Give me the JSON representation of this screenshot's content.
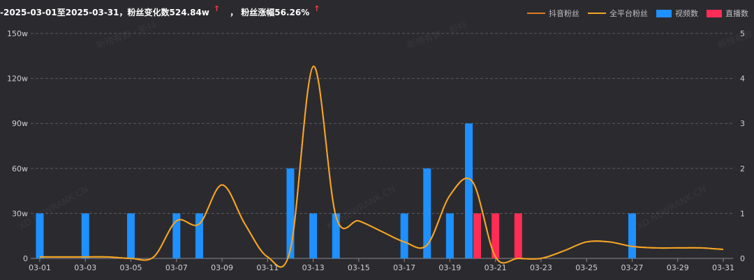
{
  "header": {
    "range_text": "-2025-03-01至2025-03-31，粉丝变化数524.84w",
    "growth_text": "，  粉丝涨幅56.26%",
    "arrow": "↑"
  },
  "legend": [
    {
      "label": "抖音粉丝",
      "color": "#e07b22",
      "kind": "line"
    },
    {
      "label": "全平台粉丝",
      "color": "#f5a623",
      "kind": "line"
    },
    {
      "label": "视频数",
      "color": "#1e90ff",
      "kind": "bar"
    },
    {
      "label": "直播数",
      "color": "#ff2d55",
      "kind": "bar"
    }
  ],
  "watermarks": [
    "新榜有数 · 新抖",
    "XD.NEWRANK.CN"
  ],
  "chart_data": {
    "type": "bar",
    "x": [
      "03-01",
      "03-02",
      "03-03",
      "03-04",
      "03-05",
      "03-06",
      "03-07",
      "03-08",
      "03-09",
      "03-10",
      "03-11",
      "03-12",
      "03-13",
      "03-14",
      "03-15",
      "03-16",
      "03-17",
      "03-18",
      "03-19",
      "03-20",
      "03-21",
      "03-22",
      "03-23",
      "03-24",
      "03-25",
      "03-26",
      "03-27",
      "03-28",
      "03-29",
      "03-30",
      "03-31"
    ],
    "x_tick_labels": [
      "03-01",
      "03-03",
      "03-05",
      "03-07",
      "03-09",
      "03-11",
      "03-13",
      "03-15",
      "03-17",
      "03-19",
      "03-21",
      "03-23",
      "03-25",
      "03-27",
      "03-29",
      "03-31"
    ],
    "y_left": {
      "ticks": [
        "0",
        "30w",
        "60w",
        "90w",
        "120w",
        "150w"
      ],
      "range": [
        0,
        150
      ]
    },
    "y_right": {
      "ticks": [
        "0",
        "1",
        "2",
        "3",
        "4",
        "5"
      ],
      "range": [
        0,
        5
      ]
    },
    "grid": true,
    "series": [
      {
        "name": "视频数",
        "type": "bar",
        "axis": "right",
        "color": "#1e90ff",
        "values": [
          1,
          0,
          1,
          0,
          1,
          0,
          1,
          1,
          0,
          0,
          0,
          2,
          1,
          1,
          0,
          0,
          1,
          2,
          1,
          3,
          0,
          0,
          0,
          0,
          0,
          0,
          1,
          0,
          0,
          0,
          0
        ]
      },
      {
        "name": "直播数",
        "type": "bar",
        "axis": "right",
        "color": "#ff2d55",
        "values": [
          0,
          0,
          0,
          0,
          0,
          0,
          0,
          0,
          0,
          0,
          0,
          0,
          0,
          0,
          0,
          0,
          0,
          0,
          0,
          1,
          1,
          1,
          0,
          0,
          0,
          0,
          0,
          0,
          0,
          0,
          0
        ]
      },
      {
        "name": "全平台粉丝",
        "type": "line",
        "axis": "left",
        "color": "#f5a623",
        "values": [
          1,
          1,
          1,
          1,
          0,
          1,
          25,
          23,
          49,
          23,
          1,
          6,
          128,
          28,
          25,
          18,
          11,
          9,
          42,
          51,
          1,
          0,
          0,
          5,
          11,
          11,
          8,
          7,
          7,
          7,
          6
        ]
      },
      {
        "name": "抖音粉丝",
        "type": "line",
        "axis": "left",
        "color": "#e07b22",
        "values": [
          1,
          1,
          1,
          1,
          0,
          1,
          25,
          23,
          49,
          23,
          1,
          6,
          128,
          28,
          25,
          18,
          11,
          9,
          42,
          51,
          1,
          0,
          0,
          5,
          11,
          11,
          8,
          7,
          7,
          7,
          6
        ]
      }
    ]
  }
}
